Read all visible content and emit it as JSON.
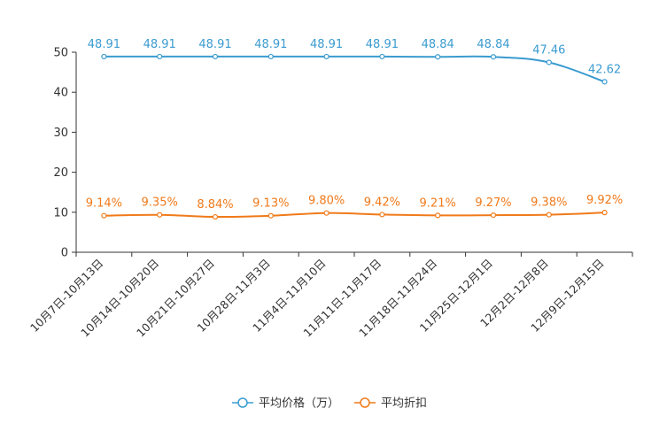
{
  "chart_data": {
    "type": "line",
    "title": "",
    "xlabel": "",
    "ylabel": "",
    "ylim": [
      0,
      50
    ],
    "yticks": [
      0,
      10,
      20,
      30,
      40,
      50
    ],
    "categories": [
      "10月7日-10月13日",
      "10月14日-10月20日",
      "10月21日-10月27日",
      "10月28日-11月3日",
      "11月4日-11月10日",
      "11月11日-11月17日",
      "11月18日-11月24日",
      "11月25日-12月1日",
      "12月2日-12月8日",
      "12月9日-12月15日"
    ],
    "series": [
      {
        "name": "平均价格（万）",
        "color": "#3a9bd0",
        "values": [
          48.91,
          48.91,
          48.91,
          48.91,
          48.91,
          48.91,
          48.84,
          48.84,
          47.46,
          42.62
        ],
        "labels": [
          "48.91",
          "48.91",
          "48.91",
          "48.91",
          "48.91",
          "48.91",
          "48.84",
          "48.84",
          "47.46",
          "42.62"
        ]
      },
      {
        "name": "平均折扣",
        "color": "#f07a1a",
        "values": [
          9.14,
          9.35,
          8.84,
          9.13,
          9.8,
          9.42,
          9.21,
          9.27,
          9.38,
          9.92
        ],
        "labels": [
          "9.14%",
          "9.35%",
          "8.84%",
          "9.13%",
          "9.80%",
          "9.42%",
          "9.21%",
          "9.27%",
          "9.38%",
          "9.92%"
        ]
      }
    ],
    "legend_position": "bottom-center",
    "grid": false
  }
}
